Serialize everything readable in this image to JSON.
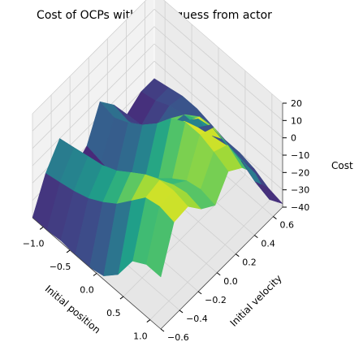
{
  "chart_data": {
    "type": "surface",
    "title": "Cost of OCPs with initial guess from actor",
    "xlabel": "Initial position",
    "ylabel": "Initial velocity",
    "zlabel": "Cost",
    "colormap": "viridis",
    "xlim": [
      -1.2,
      1.2
    ],
    "ylim": [
      -0.6,
      0.7
    ],
    "zlim": [
      -40,
      20
    ],
    "xticks": [
      "−1.0",
      "−0.5",
      "0.0",
      "0.5",
      "1.0"
    ],
    "yticks": [
      "−0.6",
      "−0.4",
      "−0.2",
      "0.0",
      "0.2",
      "0.4",
      "0.6"
    ],
    "zticks": [
      "−40",
      "−30",
      "−20",
      "−10",
      "0",
      "10",
      "20"
    ],
    "grid": true,
    "x": [
      -1.2,
      -0.93,
      -0.67,
      -0.4,
      -0.13,
      0.13,
      0.4,
      0.67,
      0.93,
      1.2
    ],
    "y": [
      -0.6,
      -0.46,
      -0.31,
      -0.17,
      -0.02,
      0.12,
      0.27,
      0.41,
      0.56,
      0.7
    ],
    "z": [
      [
        -40,
        -40,
        -39,
        -40,
        -40,
        -38,
        -30,
        -15,
        -10,
        -10
      ],
      [
        -22,
        -20,
        -18,
        -15,
        -10,
        -4,
        5,
        14,
        16,
        14
      ],
      [
        -10,
        -8,
        -6,
        -4,
        0,
        6,
        12,
        16,
        17,
        15
      ],
      [
        -36,
        -34,
        -28,
        -20,
        -12,
        -5,
        2,
        6,
        8,
        6
      ],
      [
        -30,
        -32,
        -34,
        -30,
        -22,
        -14,
        -6,
        0,
        2,
        0
      ],
      [
        -12,
        -14,
        -10,
        -4,
        4,
        14,
        19,
        19,
        16,
        12
      ],
      [
        -22,
        -24,
        -22,
        -14,
        -4,
        8,
        14,
        15,
        12,
        6
      ],
      [
        -35,
        -34,
        -28,
        -20,
        -10,
        -2,
        0,
        -2,
        -4,
        -5
      ],
      [
        -30,
        -28,
        -24,
        -22,
        -22,
        -20,
        -18,
        -20,
        -25,
        -28
      ],
      [
        -30,
        -28,
        -26,
        -26,
        -28,
        -30,
        -30,
        -32,
        -36,
        -38
      ]
    ]
  }
}
